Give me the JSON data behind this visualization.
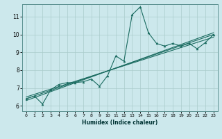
{
  "xlabel": "Humidex (Indice chaleur)",
  "background_color": "#cce8ec",
  "line_color": "#1a6b60",
  "grid_color": "#aacccc",
  "xlim": [
    -0.5,
    23.5
  ],
  "ylim": [
    5.7,
    11.7
  ],
  "yticks": [
    6,
    7,
    8,
    9,
    10,
    11
  ],
  "xticks": [
    0,
    1,
    2,
    3,
    4,
    5,
    6,
    7,
    8,
    9,
    10,
    11,
    12,
    13,
    14,
    15,
    16,
    17,
    18,
    19,
    20,
    21,
    22,
    23
  ],
  "series_main": {
    "x": [
      0,
      1,
      2,
      3,
      4,
      5,
      6,
      7,
      8,
      9,
      10,
      11,
      12,
      13,
      14,
      15,
      16,
      17,
      18,
      19,
      20,
      21,
      22,
      23
    ],
    "y": [
      6.4,
      6.55,
      6.1,
      6.9,
      7.2,
      7.3,
      7.3,
      7.35,
      7.5,
      7.1,
      7.7,
      8.8,
      8.5,
      11.1,
      11.55,
      10.1,
      9.5,
      9.35,
      9.5,
      9.35,
      9.5,
      9.2,
      9.55,
      10.0
    ]
  },
  "regression_lines": [
    {
      "x": [
        0,
        23
      ],
      "y": [
        6.4,
        10.0
      ]
    },
    {
      "x": [
        0,
        23
      ],
      "y": [
        6.5,
        9.85
      ]
    },
    {
      "x": [
        0,
        23
      ],
      "y": [
        6.3,
        10.1
      ]
    }
  ]
}
